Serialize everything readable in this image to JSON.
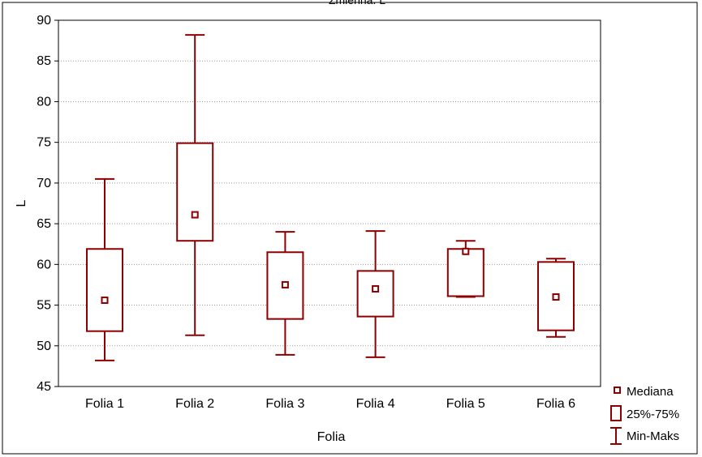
{
  "chart_data": {
    "type": "boxplot",
    "title": "Zmienna: L",
    "xlabel": "Folia",
    "ylabel": "L",
    "ylim": [
      45,
      90
    ],
    "yticks": [
      45,
      50,
      55,
      60,
      65,
      70,
      75,
      80,
      85,
      90
    ],
    "grid": true,
    "legend_position": "bottom-right",
    "categories": [
      "Folia 1",
      "Folia 2",
      "Folia 3",
      "Folia 4",
      "Folia 5",
      "Folia 6"
    ],
    "boxes": [
      {
        "category": "Folia 1",
        "min": 48.2,
        "q1": 51.8,
        "median": 55.6,
        "q3": 61.9,
        "max": 70.5
      },
      {
        "category": "Folia 2",
        "min": 51.3,
        "q1": 62.9,
        "median": 66.1,
        "q3": 74.9,
        "max": 88.2
      },
      {
        "category": "Folia 3",
        "min": 48.9,
        "q1": 53.3,
        "median": 57.5,
        "q3": 61.5,
        "max": 64.0
      },
      {
        "category": "Folia 4",
        "min": 48.6,
        "q1": 53.6,
        "median": 57.0,
        "q3": 59.2,
        "max": 64.1
      },
      {
        "category": "Folia 5",
        "min": 56.0,
        "q1": 56.1,
        "median": 61.6,
        "q3": 61.9,
        "max": 62.9
      },
      {
        "category": "Folia 6",
        "min": 51.1,
        "q1": 51.9,
        "median": 56.0,
        "q3": 60.3,
        "max": 60.7
      }
    ],
    "legend": [
      {
        "symbol": "median-marker",
        "label": "Mediana"
      },
      {
        "symbol": "box",
        "label": "25%-75%"
      },
      {
        "symbol": "whisker",
        "label": "Min-Maks"
      }
    ],
    "colors": {
      "series": "#8b0000",
      "grid": "#9a9a9a",
      "axis": "#000000"
    }
  }
}
